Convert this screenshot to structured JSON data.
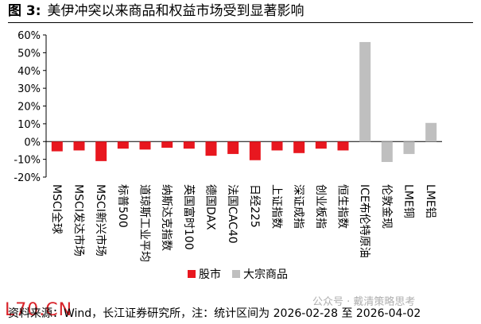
{
  "header": {
    "figure_label": "图 3:",
    "title": "美伊冲突以来商品和权益市场受到显著影响"
  },
  "chart_data": {
    "type": "bar",
    "categories": [
      "MSCI全球",
      "MSCI发达市场",
      "MSCI新兴市场",
      "标普500",
      "道琼斯工业平均",
      "纳斯达克指数",
      "英国富时100",
      "德国DAX",
      "法国CAC40",
      "日经225",
      "上证指数",
      "深证成指",
      "创业板指",
      "恒生指数",
      "ICE布伦特原油",
      "伦敦金现",
      "LME铜",
      "LME铝"
    ],
    "series": [
      {
        "name": "股市",
        "color": "#e8171f",
        "values": [
          -5.5,
          -5,
          -11,
          -4,
          -4.5,
          -3.5,
          -4,
          -8,
          -7,
          -10.5,
          -5,
          -6.5,
          -4,
          -5,
          null,
          null,
          null,
          null
        ]
      },
      {
        "name": "大宗商品",
        "color": "#bfbfbf",
        "values": [
          null,
          null,
          null,
          null,
          null,
          null,
          null,
          null,
          null,
          null,
          null,
          null,
          null,
          null,
          56,
          -11.5,
          -7,
          10.5
        ]
      }
    ],
    "ylim": [
      -20,
      60
    ],
    "yticks": [
      "-20%",
      "-10%",
      "0%",
      "10%",
      "20%",
      "30%",
      "40%",
      "50%",
      "60%"
    ],
    "grid": false,
    "legend": "bottom-center"
  },
  "footer": {
    "watermark_left": "L70.CN",
    "source": "资料来源：Wind，长江证券研究所，注：统计区间为 2026-02-28 至 2026-04-02",
    "watermark_right": "公众号 · 戴清策略思考"
  }
}
